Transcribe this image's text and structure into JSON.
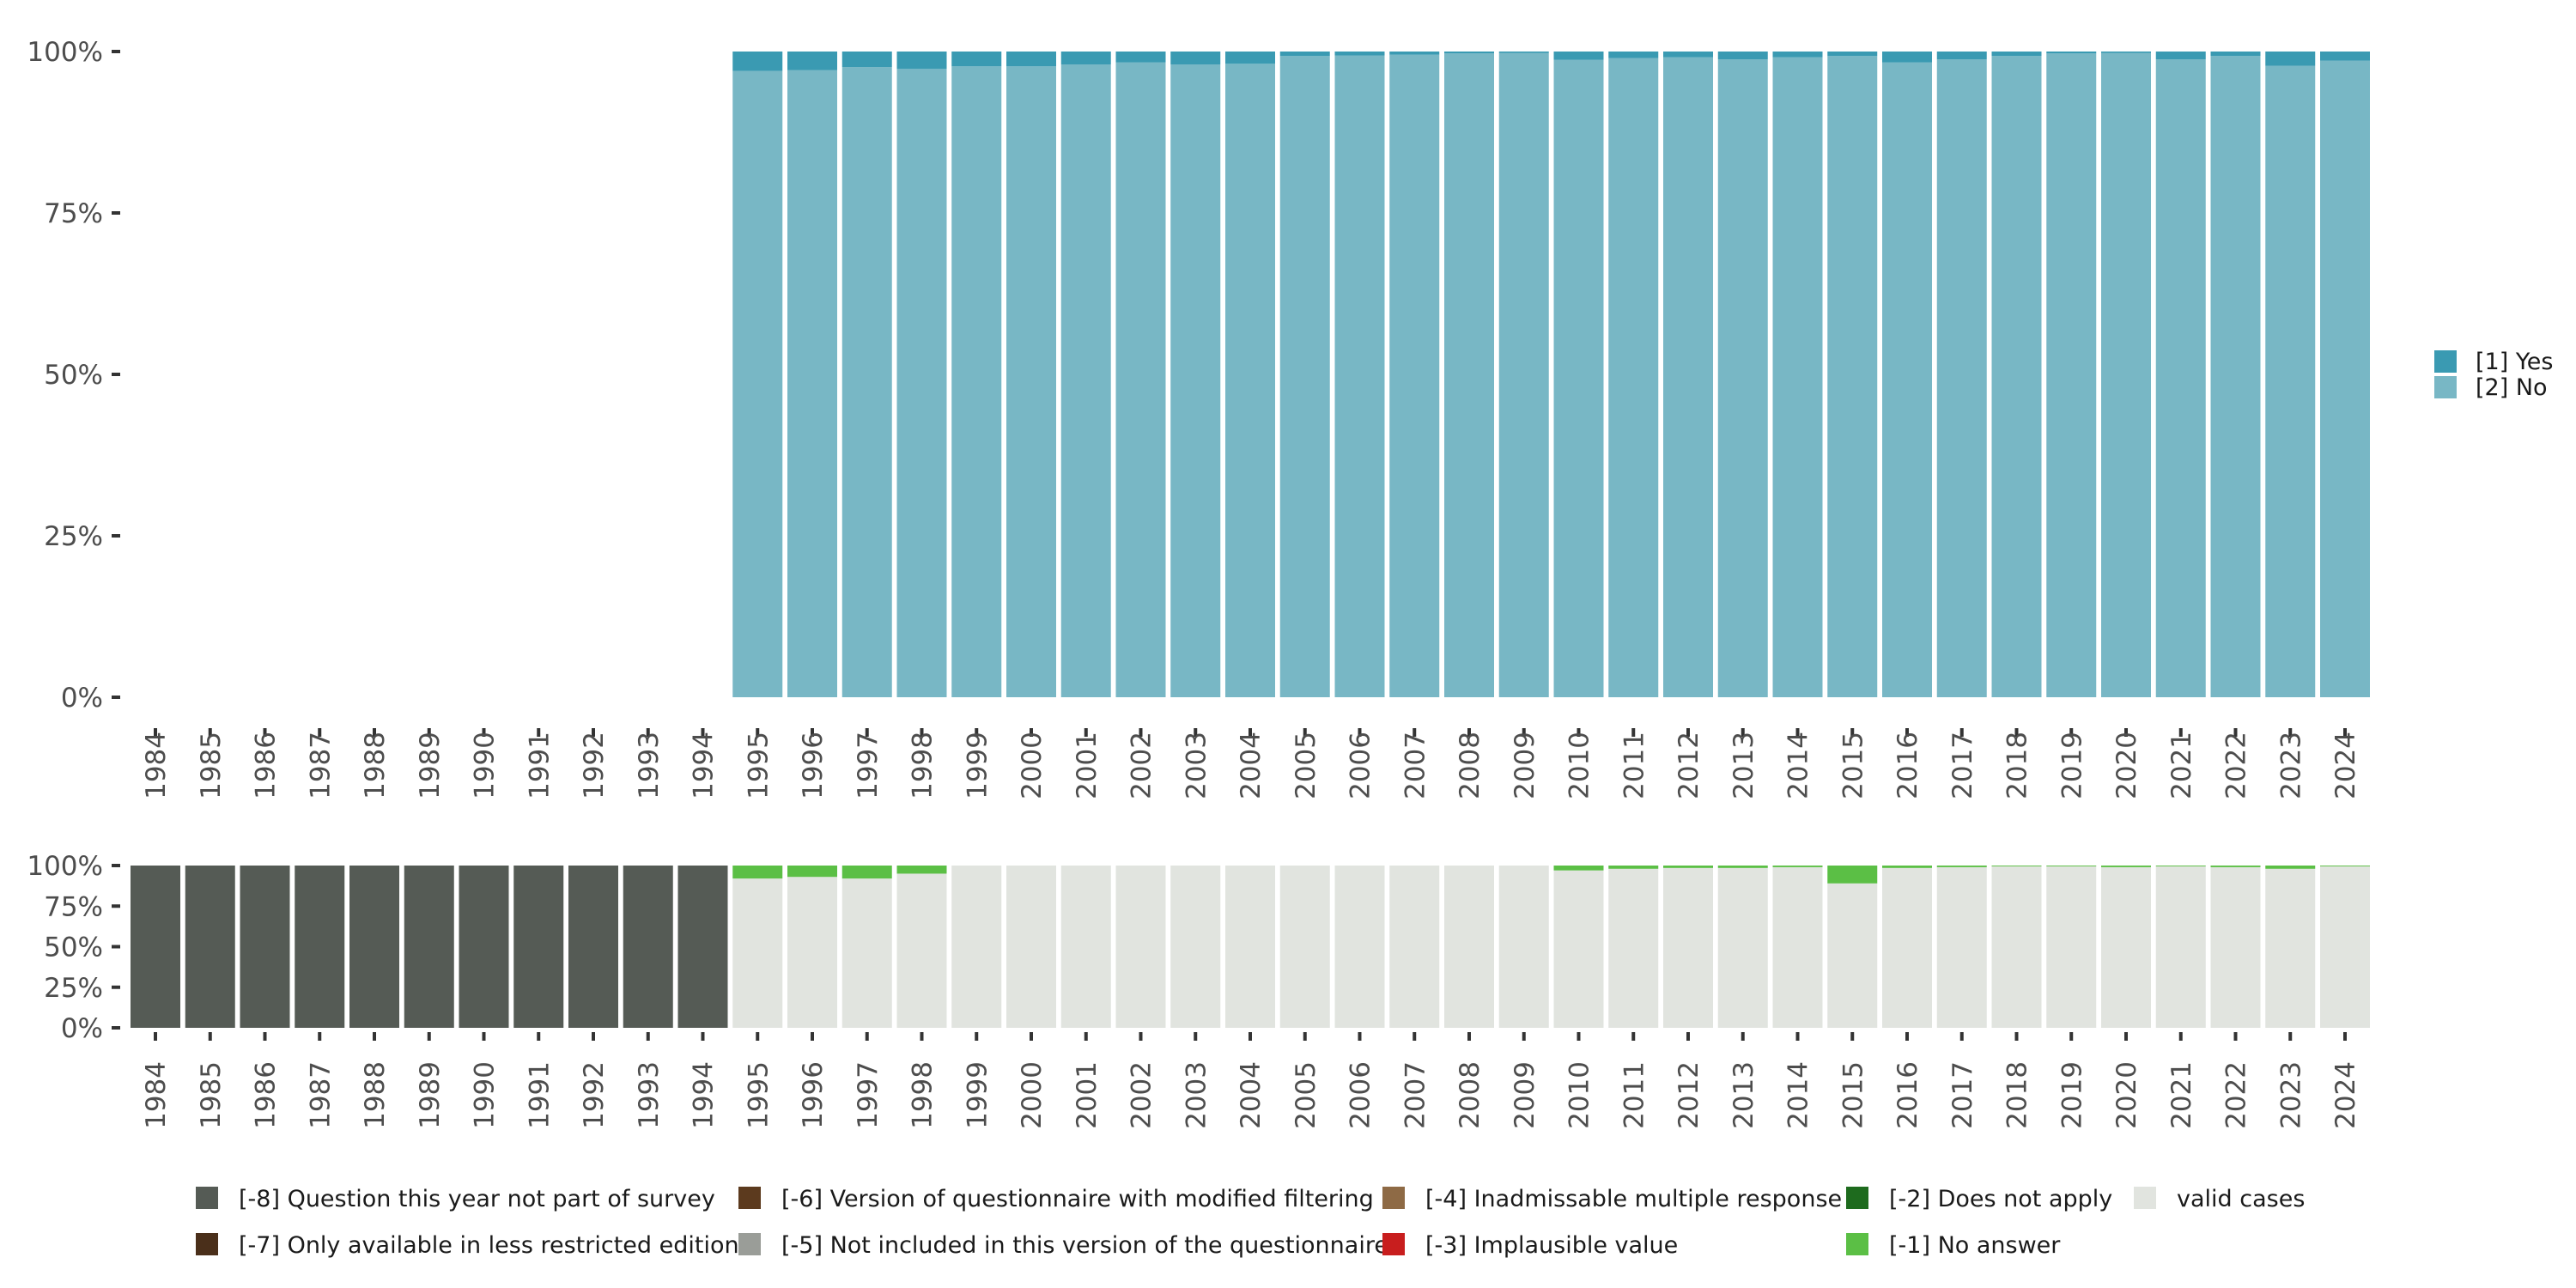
{
  "chart_data": [
    {
      "type": "bar",
      "stacked": true,
      "normalized": true,
      "categories": [
        "1984",
        "1985",
        "1986",
        "1987",
        "1988",
        "1989",
        "1990",
        "1991",
        "1992",
        "1993",
        "1994",
        "1995",
        "1996",
        "1997",
        "1998",
        "1999",
        "2000",
        "2001",
        "2002",
        "2003",
        "2004",
        "2005",
        "2006",
        "2007",
        "2008",
        "2009",
        "2010",
        "2011",
        "2012",
        "2013",
        "2014",
        "2015",
        "2016",
        "2017",
        "2018",
        "2019",
        "2020",
        "2021",
        "2022",
        "2023",
        "2024"
      ],
      "series": [
        {
          "name": "[2] No",
          "color": "#78b7c5",
          "values": [
            null,
            null,
            null,
            null,
            null,
            null,
            null,
            null,
            null,
            null,
            null,
            97.0,
            97.1,
            97.6,
            97.3,
            97.7,
            97.7,
            98.0,
            98.3,
            98.0,
            98.1,
            99.3,
            99.4,
            99.5,
            99.7,
            99.8,
            98.7,
            99.0,
            99.1,
            98.8,
            99.1,
            99.3,
            98.3,
            98.8,
            99.3,
            99.7,
            99.8,
            98.8,
            99.3,
            97.8,
            98.6
          ]
        },
        {
          "name": "[1] Yes",
          "color": "#3a9ab2",
          "values": [
            null,
            null,
            null,
            null,
            null,
            null,
            null,
            null,
            null,
            null,
            null,
            3.0,
            2.9,
            2.4,
            2.7,
            2.3,
            2.3,
            2.0,
            1.7,
            2.0,
            1.9,
            0.7,
            0.6,
            0.5,
            0.3,
            0.2,
            1.3,
            1.0,
            0.9,
            1.2,
            0.9,
            0.7,
            1.7,
            1.2,
            0.7,
            0.3,
            0.2,
            1.2,
            0.7,
            2.2,
            1.4
          ]
        }
      ],
      "y_ticks": [
        "0%",
        "25%",
        "50%",
        "75%",
        "100%"
      ],
      "ylim": [
        0,
        100
      ],
      "legend_position": "right",
      "grid": false
    },
    {
      "type": "bar",
      "stacked": true,
      "normalized": true,
      "categories": [
        "1984",
        "1985",
        "1986",
        "1987",
        "1988",
        "1989",
        "1990",
        "1991",
        "1992",
        "1993",
        "1994",
        "1995",
        "1996",
        "1997",
        "1998",
        "1999",
        "2000",
        "2001",
        "2002",
        "2003",
        "2004",
        "2005",
        "2006",
        "2007",
        "2008",
        "2009",
        "2010",
        "2011",
        "2012",
        "2013",
        "2014",
        "2015",
        "2016",
        "2017",
        "2018",
        "2019",
        "2020",
        "2021",
        "2022",
        "2023",
        "2024"
      ],
      "series": [
        {
          "name": "valid cases",
          "color": "#e1e4df",
          "values": [
            0,
            0,
            0,
            0,
            0,
            0,
            0,
            0,
            0,
            0,
            0,
            92,
            93,
            92,
            95,
            100,
            100,
            100,
            100,
            100,
            100,
            100,
            100,
            100,
            100,
            100,
            97,
            98,
            98.5,
            98.5,
            99,
            89,
            98.5,
            99,
            99.5,
            99.5,
            99,
            99.5,
            99,
            98,
            99.5
          ]
        },
        {
          "name": "[-1] No answer",
          "color": "#5bbf45",
          "values": [
            0,
            0,
            0,
            0,
            0,
            0,
            0,
            0,
            0,
            0,
            0,
            8,
            7,
            8,
            5,
            0,
            0,
            0,
            0,
            0,
            0,
            0,
            0,
            0,
            0,
            0,
            3,
            2,
            1.5,
            1.5,
            1,
            11,
            1.5,
            1,
            0.5,
            0.5,
            1,
            0.5,
            1,
            2,
            0.5
          ]
        },
        {
          "name": "[-8] Question this year not part of survey",
          "color": "#555b55",
          "values": [
            100,
            100,
            100,
            100,
            100,
            100,
            100,
            100,
            100,
            100,
            100,
            0,
            0,
            0,
            0,
            0,
            0,
            0,
            0,
            0,
            0,
            0,
            0,
            0,
            0,
            0,
            0,
            0,
            0,
            0,
            0,
            0,
            0,
            0,
            0,
            0,
            0,
            0,
            0,
            0,
            0
          ]
        }
      ],
      "y_ticks": [
        "0%",
        "25%",
        "50%",
        "75%",
        "100%"
      ],
      "ylim": [
        0,
        100
      ],
      "legend_position": "bottom",
      "grid": false
    }
  ],
  "legend_main": [
    {
      "label": "[1] Yes",
      "color": "#3a9ab2"
    },
    {
      "label": "[2] No",
      "color": "#78b7c5"
    }
  ],
  "legend_missing": [
    {
      "label": "[-8] Question this year not part of survey",
      "color": "#555b55"
    },
    {
      "label": "[-7] Only available in less restricted edition",
      "color": "#4a2f1a"
    },
    {
      "label": "[-6] Version of questionnaire with modified filtering",
      "color": "#5c3a1e"
    },
    {
      "label": "[-5] Not included in this version of the questionnaire",
      "color": "#9a9d98"
    },
    {
      "label": "[-4] Inadmissable multiple response",
      "color": "#8e6a45"
    },
    {
      "label": "[-3] Implausible value",
      "color": "#c81e1e"
    },
    {
      "label": "[-2] Does not apply",
      "color": "#1e6b1e"
    },
    {
      "label": "[-1] No answer",
      "color": "#5bbf45"
    },
    {
      "label": "valid cases",
      "color": "#e1e4df"
    }
  ]
}
